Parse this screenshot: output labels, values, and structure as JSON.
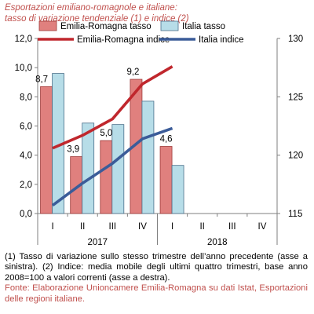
{
  "title_lines": [
    "Esportazioni emiliano-romagnole e italiane:",
    "tasso di variazione tendenziale (1) e indice (2)"
  ],
  "notes": [
    "(1) Tasso di variazione sullo stesso trimestre dell’anno precedente (asse a sinistra). (2) Indice: media mobile degli ultimi quattro trimestri, base anno 2008=100 a valori correnti (asse a destra)."
  ],
  "source": "Fonte: Elaborazione Unioncamere Emilia-Romagna su dati Istat, Esportazioni delle regioni italiane.",
  "colors": {
    "er_bar": "#e0807e",
    "it_bar": "#b7dde8",
    "er_line": "#c0272d",
    "it_line": "#3b5c99",
    "title": "#c0504d"
  },
  "chart_data": {
    "type": "bar",
    "categories": [
      "I",
      "II",
      "III",
      "IV",
      "I",
      "II",
      "III",
      "IV"
    ],
    "groups": [
      {
        "label": "2017",
        "categories": [
          "I",
          "II",
          "III",
          "IV"
        ]
      },
      {
        "label": "2018",
        "categories": [
          "I",
          "II",
          "III",
          "IV"
        ]
      }
    ],
    "series": [
      {
        "name": "Emilia-Romagna tasso",
        "kind": "bar",
        "axis": "left",
        "values": [
          8.7,
          3.9,
          5.0,
          9.2,
          4.6,
          null,
          null,
          null
        ]
      },
      {
        "name": "Italia tasso",
        "kind": "bar",
        "axis": "left",
        "values": [
          9.6,
          6.2,
          6.1,
          7.7,
          3.3,
          null,
          null,
          null
        ]
      },
      {
        "name": "Emilia-Romagna indice",
        "kind": "line",
        "axis": "right",
        "values": [
          120.6,
          121.7,
          123.1,
          126.1,
          127.6,
          null,
          null,
          null
        ]
      },
      {
        "name": "Italia indice",
        "kind": "line",
        "axis": "right",
        "values": [
          115.7,
          117.6,
          119.3,
          121.4,
          122.3,
          null,
          null,
          null
        ]
      }
    ],
    "data_labels": [
      {
        "series": "Emilia-Romagna tasso",
        "index": 0,
        "text": "8,7"
      },
      {
        "series": "Emilia-Romagna tasso",
        "index": 1,
        "text": "3,9"
      },
      {
        "series": "Emilia-Romagna tasso",
        "index": 2,
        "text": "5,0"
      },
      {
        "series": "Emilia-Romagna tasso",
        "index": 3,
        "text": "9,2"
      },
      {
        "series": "Emilia-Romagna tasso",
        "index": 4,
        "text": "4,6"
      }
    ],
    "y_left": {
      "ylim": [
        0,
        12
      ],
      "ticks": [
        "0,0",
        "2,0",
        "4,0",
        "6,0",
        "8,0",
        "10,0",
        "12,0"
      ]
    },
    "y_right": {
      "ylim": [
        115,
        130
      ],
      "ticks": [
        "115",
        "120",
        "125",
        "130"
      ]
    },
    "grid": false,
    "legend": "top"
  }
}
